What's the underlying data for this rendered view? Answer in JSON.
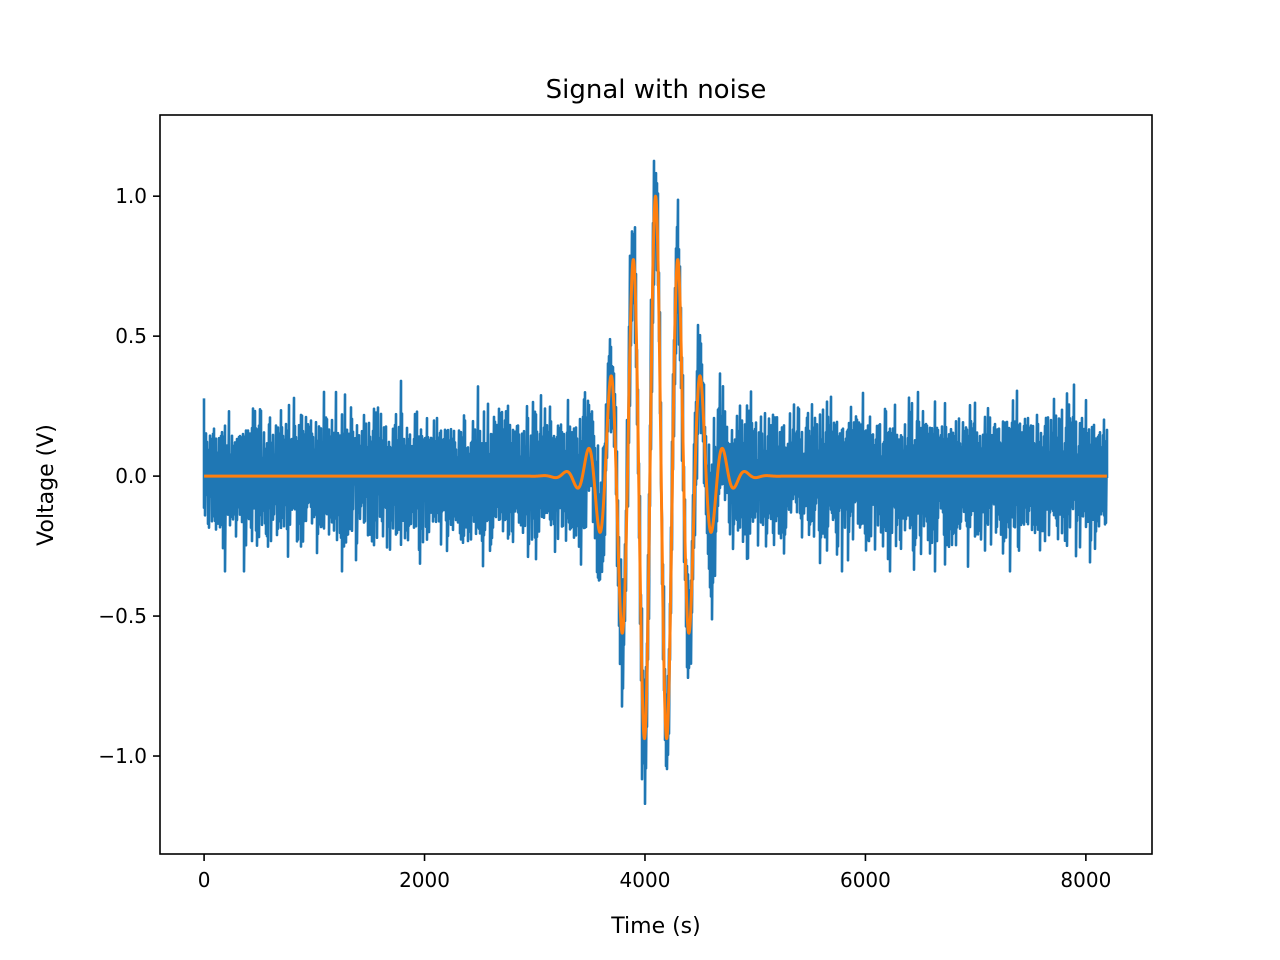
{
  "chart_data": {
    "type": "line",
    "title": "Signal with noise",
    "xlabel": "Time (s)",
    "ylabel": "Voltage (V)",
    "xlim": [
      -400,
      8600
    ],
    "ylim": [
      -1.35,
      1.29
    ],
    "xticks": [
      0,
      2000,
      4000,
      6000,
      8000
    ],
    "xtick_labels": [
      "0",
      "2000",
      "4000",
      "6000",
      "8000"
    ],
    "yticks": [
      1.0,
      0.5,
      0.0,
      -0.5,
      -1.0
    ],
    "ytick_labels": [
      "1.0",
      "0.5",
      "0.0",
      "−0.5",
      "−1.0"
    ],
    "grid": false,
    "legend": false,
    "series": [
      {
        "kind": "noisy signal",
        "color": "#1f77b4",
        "n_points": 8192,
        "x_range": [
          0,
          8191
        ],
        "noise_std": 0.1,
        "noise_range": [
          -0.34,
          0.33
        ],
        "overall_range": [
          -1.22,
          1.18
        ]
      },
      {
        "kind": "gaussian-windowed sine",
        "color": "#ff7f0e",
        "formula": "y = exp(-((x - 4096) / 400)^2) * cos(2*pi*(x - 4096)/204)",
        "center": 4096,
        "envelope_width": 400,
        "period": 204,
        "amplitude": 1.0,
        "y_range": [
          -0.99,
          1.0
        ]
      }
    ]
  }
}
